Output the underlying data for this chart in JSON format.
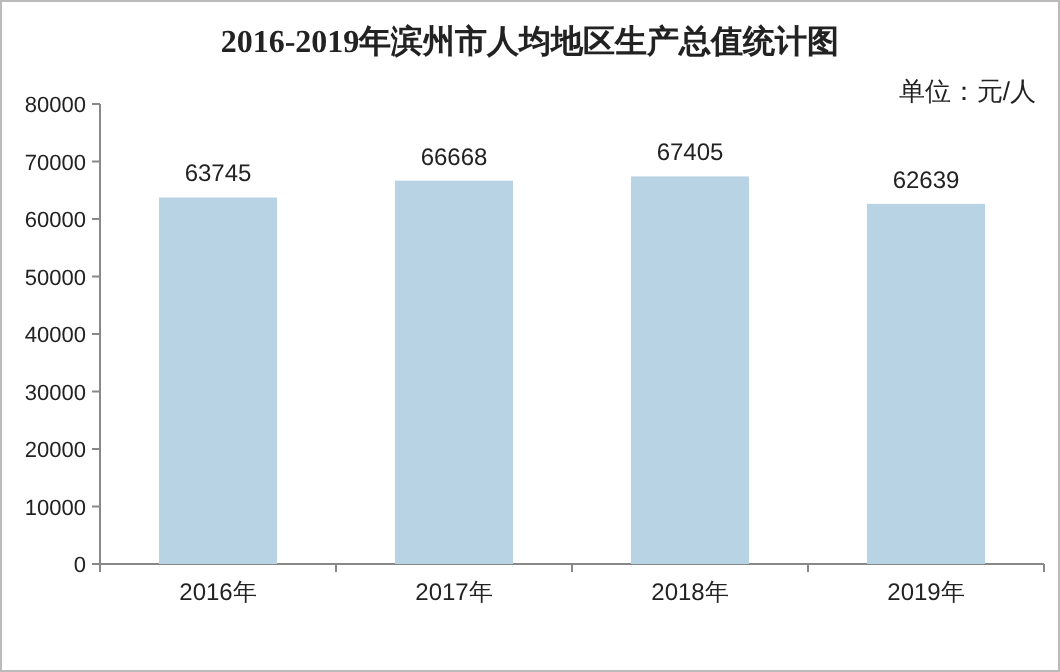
{
  "chart_data": {
    "type": "bar",
    "title": "2016-2019年滨州市人均地区生产总值统计图",
    "annotations": [
      "单位：元/人"
    ],
    "categories": [
      "2016年",
      "2017年",
      "2018年",
      "2019年"
    ],
    "values": [
      63745,
      66668,
      67405,
      62639
    ],
    "color": "#b8d3e4",
    "ylim": [
      0,
      80000
    ],
    "yticks": [
      0,
      10000,
      20000,
      30000,
      40000,
      50000,
      60000,
      70000,
      80000
    ],
    "data_labels": true,
    "grid": false,
    "legend": false
  }
}
